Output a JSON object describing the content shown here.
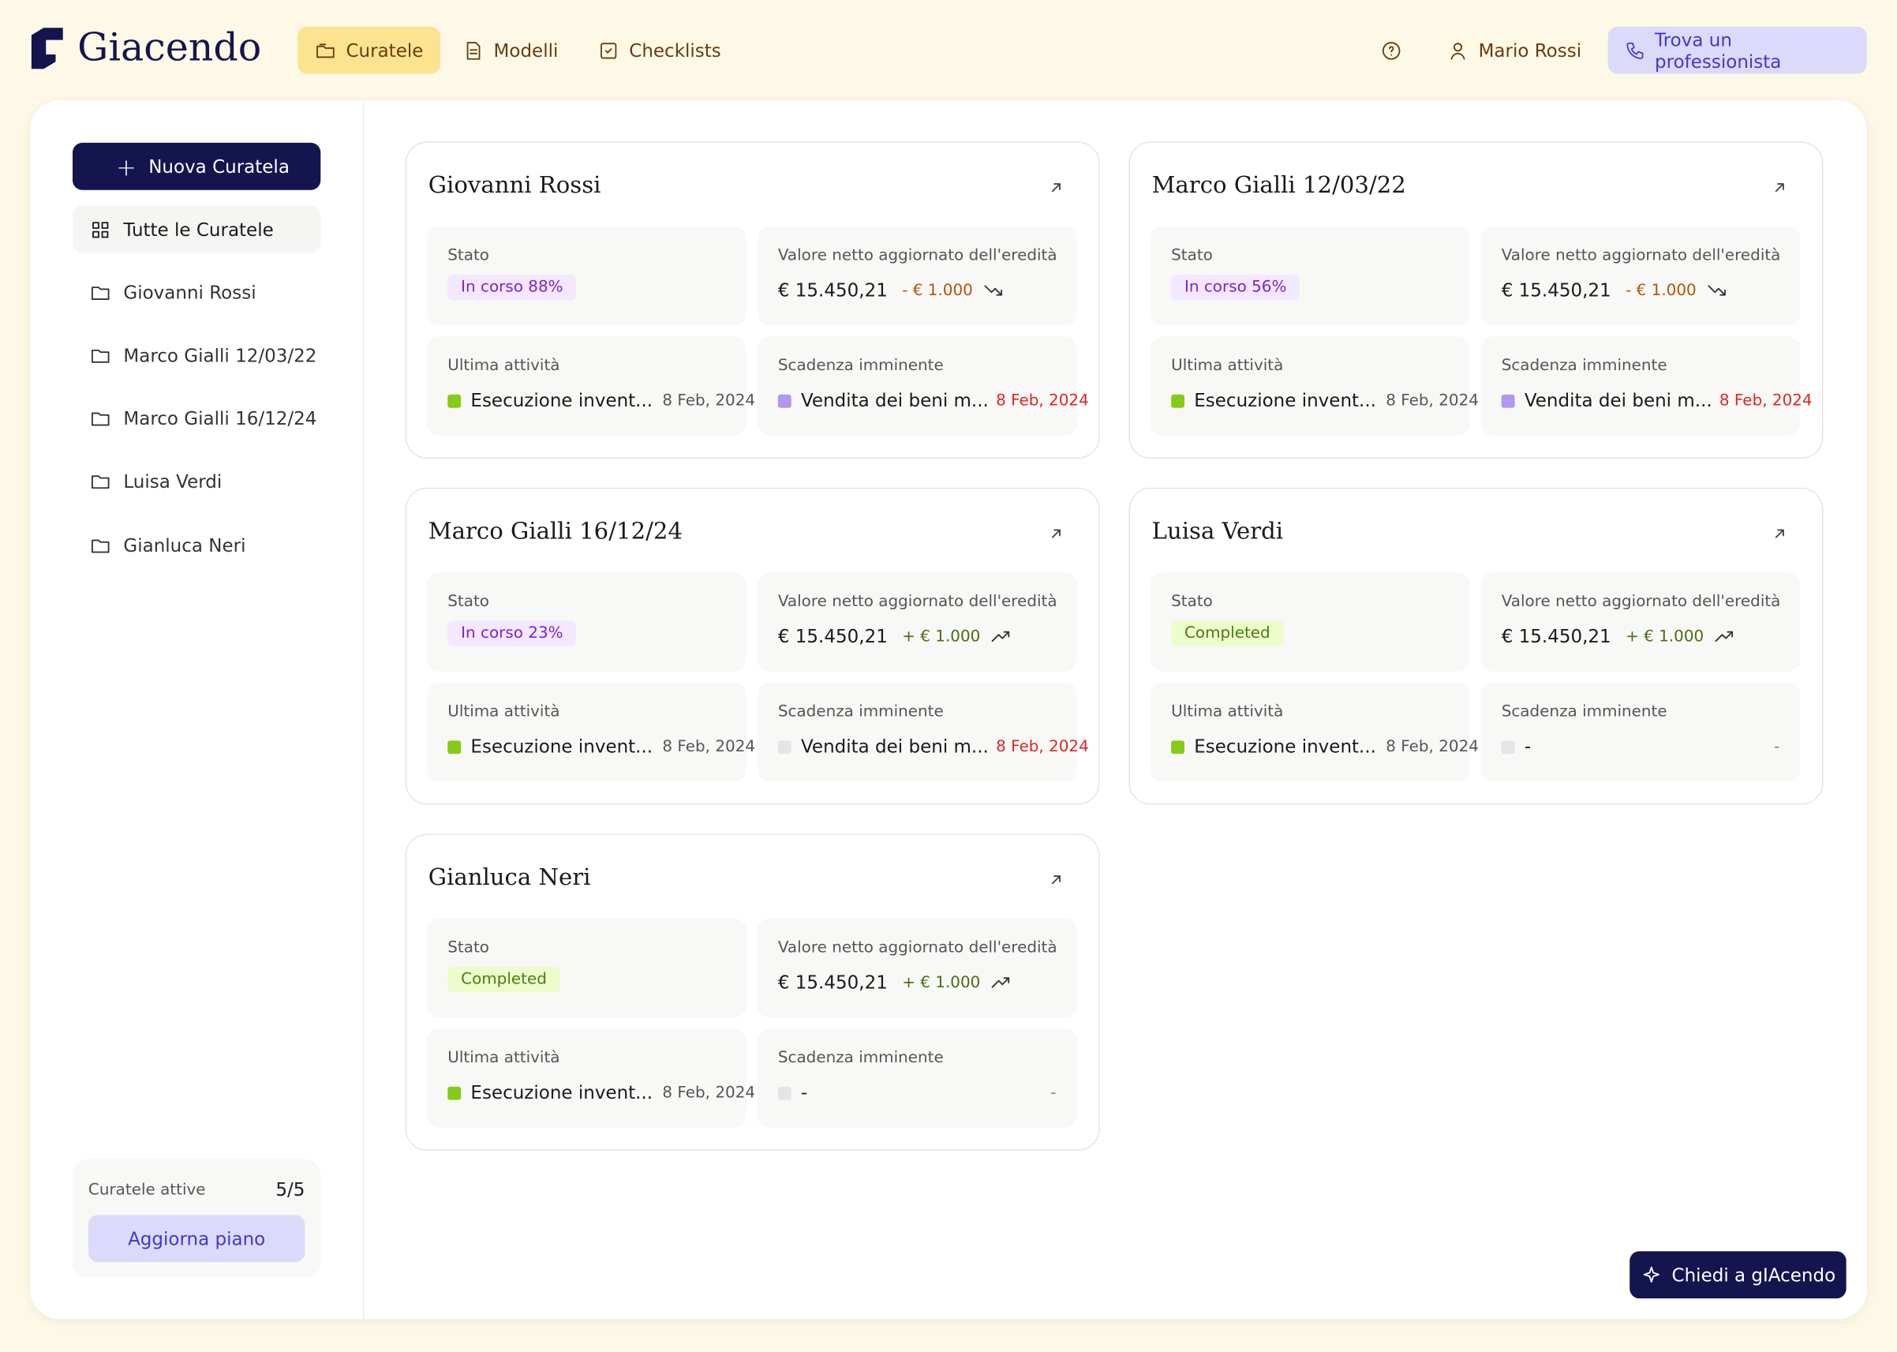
{
  "header": {
    "brand": "Giacendo",
    "nav": [
      "Curatele",
      "Modelli",
      "Checklists"
    ],
    "user": "Mario Rossi",
    "cta": "Trova un professionista"
  },
  "sidebar": {
    "new_button": "Nuova Curatela",
    "all": "Tutte le Curatele",
    "items": [
      "Giovanni Rossi",
      "Marco Gialli 12/03/22",
      "Marco Gialli 16/12/24",
      "Luisa Verdi",
      "Gianluca Neri"
    ],
    "plan_label": "Curatele attive",
    "plan_count": "5/5",
    "plan_button": "Aggiorna piano"
  },
  "labels": {
    "stato": "Stato",
    "valore": "Valore netto aggiornato dell'eredità",
    "ultima": "Ultima attività",
    "scadenza": "Scadenza imminente"
  },
  "cards": [
    {
      "name": "Giovanni Rossi",
      "status": "In corso 88%",
      "status_color": "#7e22ce",
      "status_bg": "#f3e8ff",
      "amount": "€ 15.450,21",
      "delta": "- € 1.000",
      "activity": "Esecuzione invent...",
      "activity_color": "#84cc16",
      "activity_date": "8 Feb, 2024",
      "deadline": "Vendita dei beni m...",
      "deadline_color": "#b197f0",
      "deadline_date": "8 Feb, 2024"
    },
    {
      "name": "Marco Gialli 12/03/22",
      "status": "In corso 56%",
      "status_color": "#7e22ce",
      "status_bg": "#f3e8ff",
      "amount": "€ 15.450,21",
      "delta": "- € 1.000",
      "activity": "Esecuzione invent...",
      "activity_color": "#84cc16",
      "activity_date": "8 Feb, 2024",
      "deadline": "Vendita dei beni m...",
      "deadline_color": "#b197f0",
      "deadline_date": "8 Feb, 2024"
    },
    {
      "name": "Marco Gialli 16/12/24",
      "status": "In corso 23%",
      "status_color": "#7e22ce",
      "status_bg": "#f3e8ff",
      "amount": "€ 15.450,21",
      "delta": "+ € 1.000",
      "activity": "Esecuzione invent...",
      "activity_color": "#84cc16",
      "activity_date": "8 Feb, 2024",
      "deadline": "Vendita dei beni m...",
      "deadline_color": "#e5e5e5",
      "deadline_date": "8 Feb, 2024"
    },
    {
      "name": "Luisa Verdi",
      "status": "Completed",
      "status_color": "#4d7c0f",
      "status_bg": "#ecfccb",
      "amount": "€ 15.450,21",
      "delta": "+ € 1.000",
      "activity": "Esecuzione invent...",
      "activity_color": "#84cc16",
      "activity_date": "8 Feb, 2024",
      "deadline": "-",
      "deadline_color": "#e5e5e5",
      "deadline_date": "-"
    },
    {
      "name": "Gianluca Neri",
      "status": "Completed",
      "status_color": "#4d7c0f",
      "status_bg": "#ecfccb",
      "amount": "€ 15.450,21",
      "delta": "+ € 1.000",
      "activity": "Esecuzione invent...",
      "activity_color": "#84cc16",
      "activity_date": "8 Feb, 2024",
      "deadline": "-",
      "deadline_color": "#e5e5e5",
      "deadline_date": "-"
    }
  ],
  "chat_button": "Chiedi a gIAcendo"
}
